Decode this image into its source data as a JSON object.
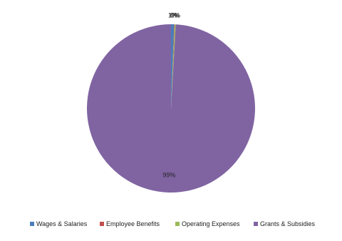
{
  "chart_data": {
    "type": "pie",
    "categories": [
      "Wages & Salaries",
      "Employee Benefits",
      "Operating Expenses",
      "Grants & Subsidies"
    ],
    "values": [
      0.6,
      0.1,
      0.2,
      99.1
    ],
    "value_labels": [
      "1%",
      "0%",
      "0%",
      "99%"
    ],
    "colors": [
      "#4a7ebb",
      "#c0504d",
      "#9bbb59",
      "#8064a2"
    ],
    "legend": "bottom"
  }
}
